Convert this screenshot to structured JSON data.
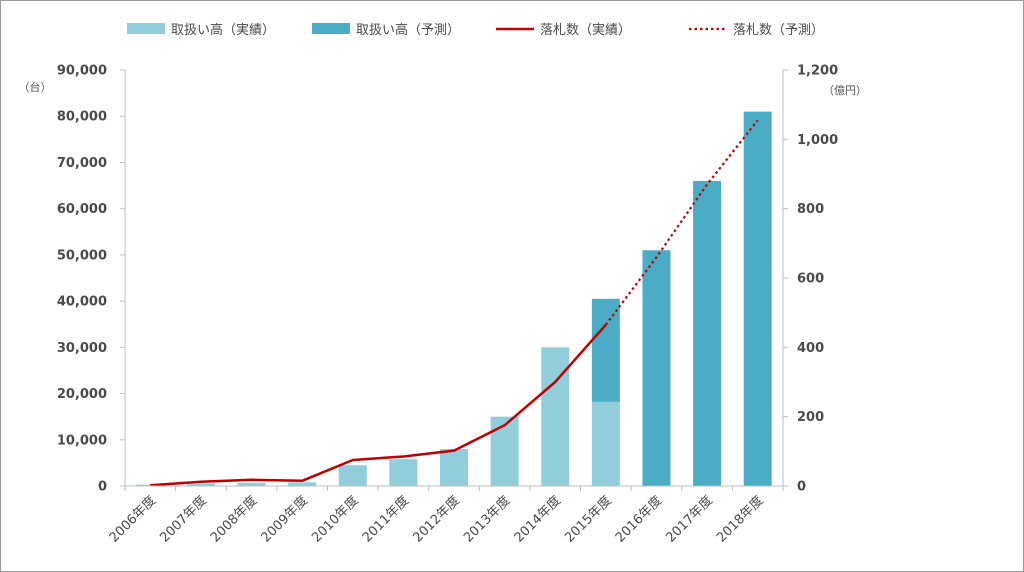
{
  "chart_data": {
    "type": "bar",
    "categories": [
      "2006年度",
      "2007年度",
      "2008年度",
      "2009年度",
      "2010年度",
      "2011年度",
      "2012年度",
      "2013年度",
      "2014年度",
      "2015年度",
      "2016年度",
      "2017年度",
      "2018年度"
    ],
    "left_axis": {
      "unit": "（台）",
      "ticks": [
        "0",
        "10,000",
        "20,000",
        "30,000",
        "40,000",
        "50,000",
        "60,000",
        "70,000",
        "80,000",
        "90,000"
      ],
      "ylim": [
        0,
        90000
      ]
    },
    "right_axis": {
      "unit": "（億円）",
      "ticks": [
        "0",
        "200",
        "400",
        "600",
        "800",
        "1,000",
        "1,200"
      ],
      "ylim": [
        0,
        1200
      ]
    },
    "series": [
      {
        "name": "取扱い高（実績）",
        "type": "bar",
        "axis": "left",
        "color": "#92cddc",
        "values": [
          300,
          500,
          700,
          800,
          4500,
          5800,
          8000,
          15000,
          30000,
          18200,
          null,
          null,
          null
        ]
      },
      {
        "name": "取扱い高（予測）",
        "type": "bar",
        "axis": "left",
        "color": "#4bacc6",
        "values": [
          null,
          null,
          null,
          null,
          null,
          null,
          null,
          null,
          null,
          22300,
          51000,
          66000,
          81000
        ]
      },
      {
        "name": "落札数（実績）",
        "type": "line",
        "axis": "right",
        "color": "#c00000",
        "values": [
          2,
          12,
          18,
          15,
          75,
          85,
          102,
          175,
          300,
          465,
          null,
          null,
          null
        ]
      },
      {
        "name": "落札数（予測）",
        "type": "line",
        "style": "dotted",
        "axis": "right",
        "color": "#c00000",
        "values": [
          null,
          null,
          null,
          null,
          null,
          null,
          null,
          null,
          null,
          465,
          660,
          870,
          1055
        ]
      }
    ],
    "legend_position": "top",
    "grid": false
  }
}
